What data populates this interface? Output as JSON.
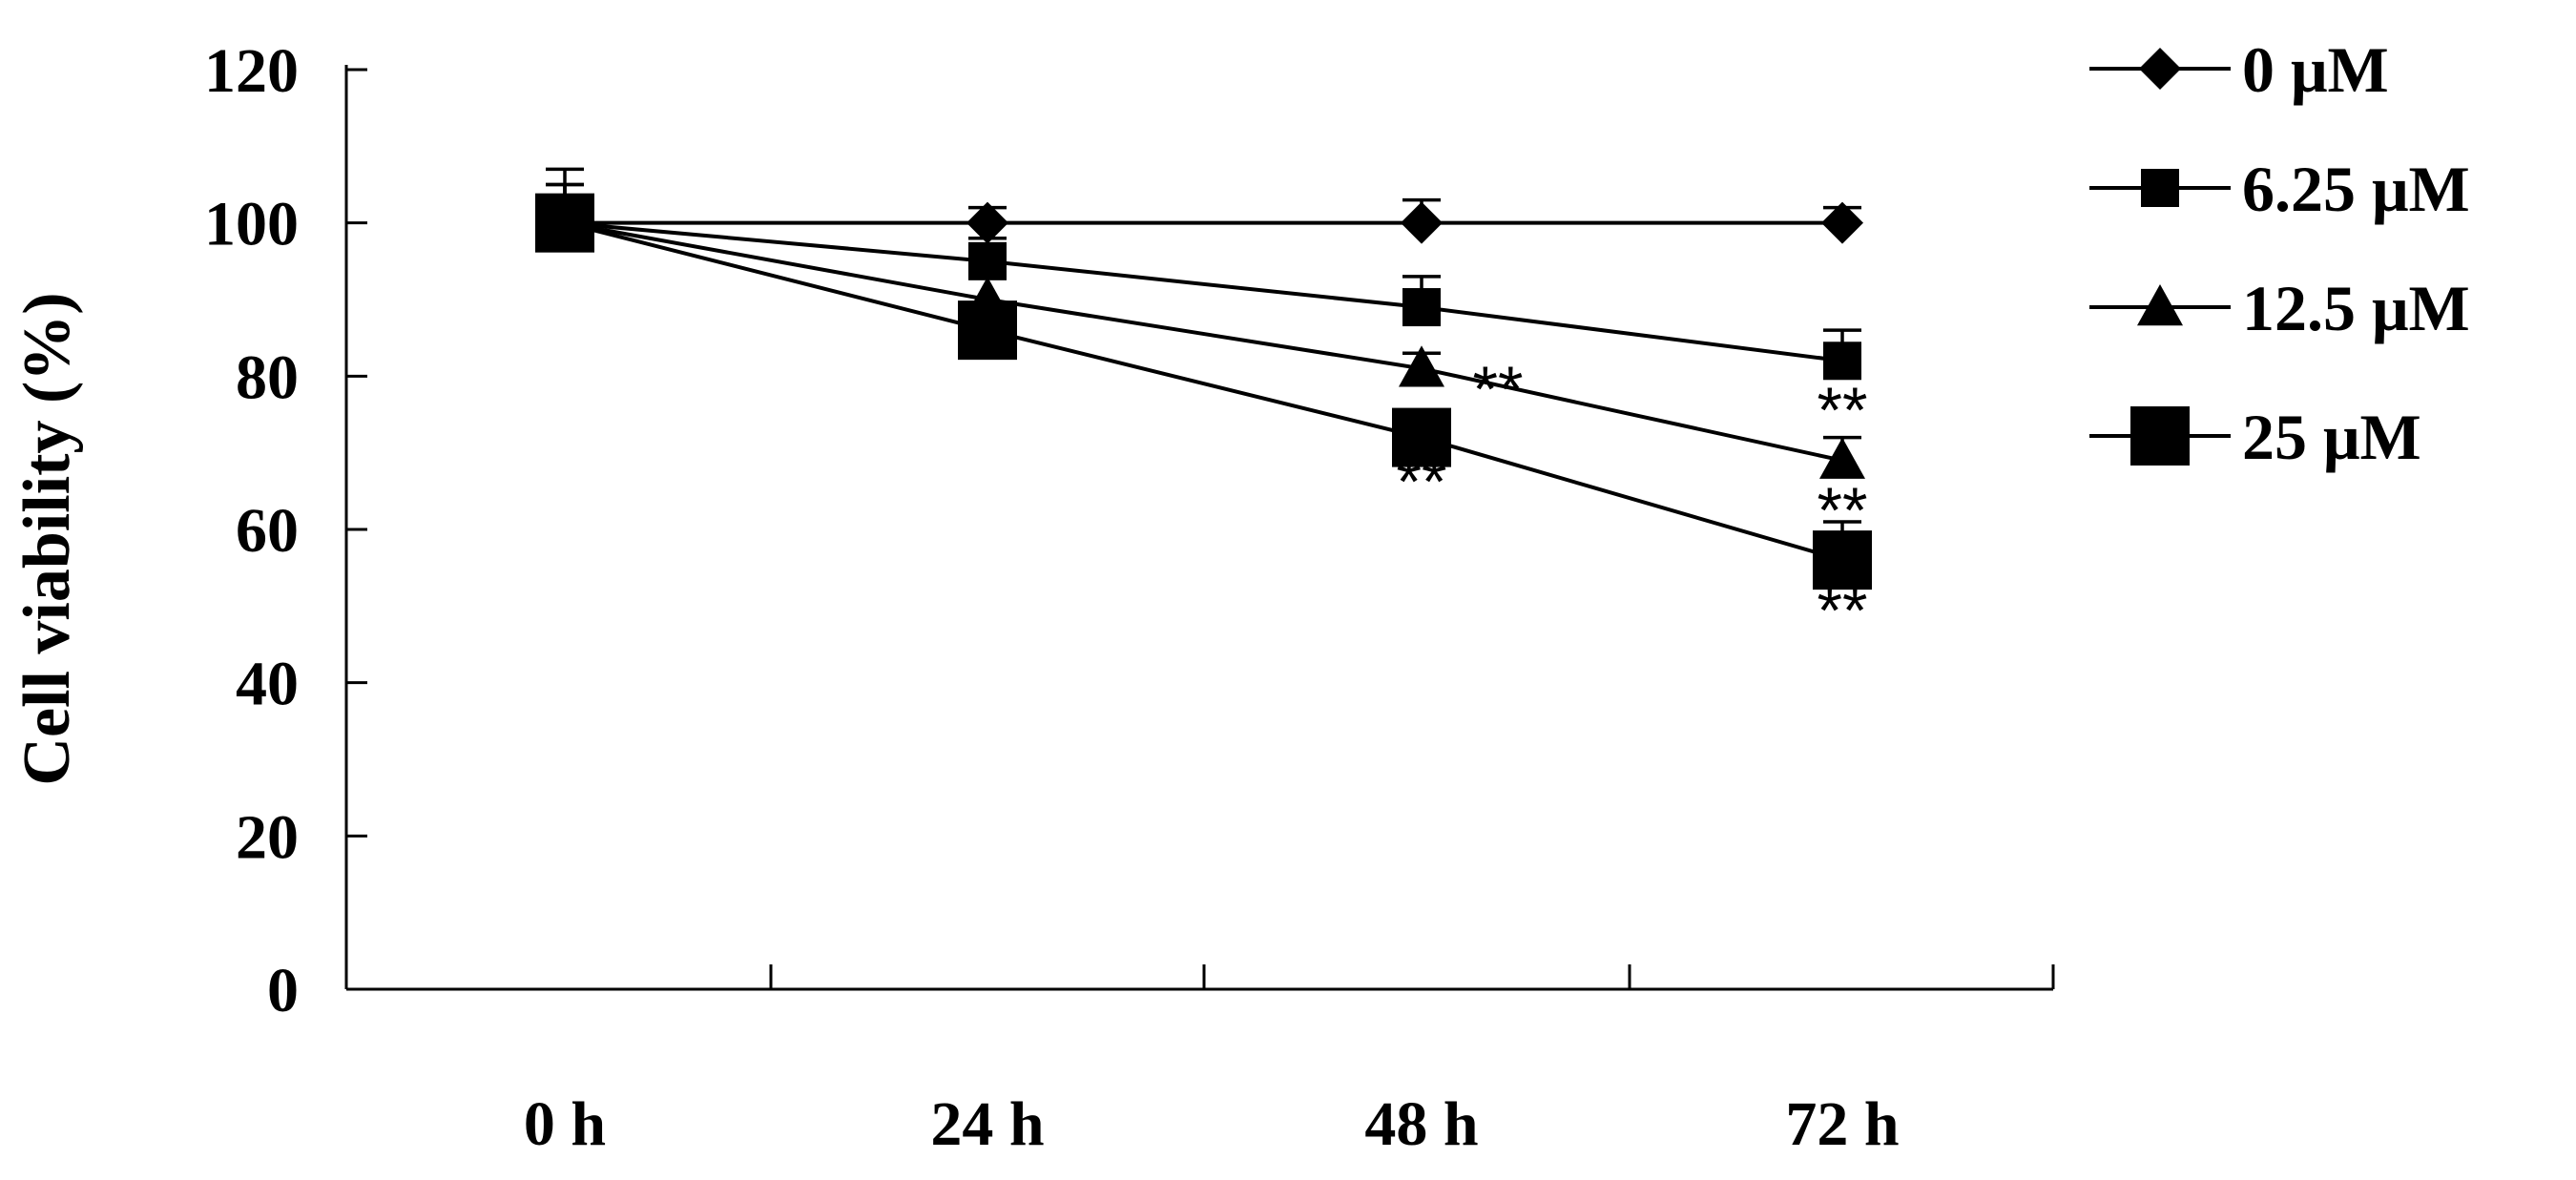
{
  "chart_data": {
    "type": "line",
    "title": "",
    "xlabel": "",
    "ylabel": "Cell viability (%)",
    "ylim": [
      0,
      120
    ],
    "yticks": [
      "0",
      "20",
      "40",
      "60",
      "80",
      "100",
      "120"
    ],
    "categories": [
      "0 h",
      "24 h",
      "48 h",
      "72 h"
    ],
    "grid": false,
    "legend_position": "right",
    "series": [
      {
        "name": "0 μM",
        "marker": "diamond",
        "values": [
          100,
          100,
          100,
          100
        ],
        "errors": [
          2,
          2,
          3,
          2
        ]
      },
      {
        "name": "6.25 μM",
        "marker": "square",
        "values": [
          100,
          95,
          89,
          82
        ],
        "errors": [
          7,
          3,
          4,
          4
        ]
      },
      {
        "name": "12.5 μM",
        "marker": "triangle",
        "values": [
          100,
          90,
          81,
          69
        ],
        "errors": [
          5,
          3,
          2,
          3
        ]
      },
      {
        "name": "25 μM",
        "marker": "square-large",
        "values": [
          100,
          86,
          72,
          56
        ],
        "errors": [
          5,
          3,
          3,
          5
        ]
      }
    ],
    "annotations": [
      {
        "text": "**",
        "category": "48 h",
        "series": "12.5 μM"
      },
      {
        "text": "**",
        "category": "48 h",
        "series": "25 μM"
      },
      {
        "text": "**",
        "category": "72 h",
        "series": "12.5 μM"
      },
      {
        "text": "**",
        "category": "72 h",
        "series": "25 μM"
      },
      {
        "text": "**",
        "category": "72 h",
        "series": "25 μM"
      }
    ]
  }
}
